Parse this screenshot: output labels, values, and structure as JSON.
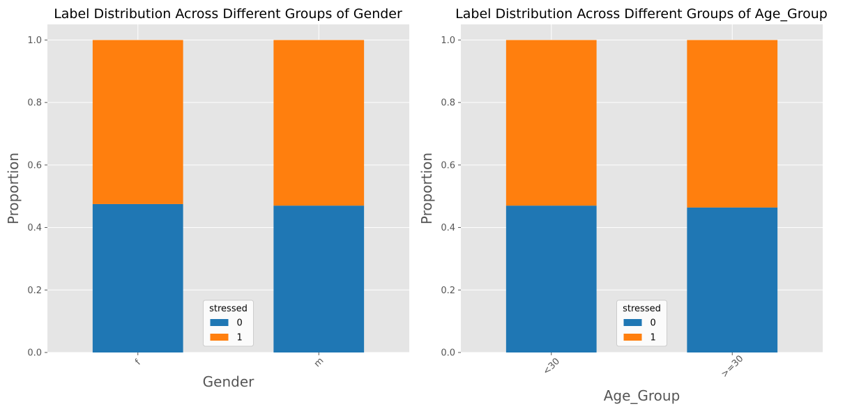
{
  "chart_data": [
    {
      "type": "bar",
      "stacked": true,
      "title": "Label Distribution Across Different Groups of Gender",
      "xlabel": "Gender",
      "ylabel": "Proportion",
      "categories": [
        "f",
        "m"
      ],
      "series": [
        {
          "name": "0",
          "values": [
            0.475,
            0.47
          ],
          "color": "#1f77b4"
        },
        {
          "name": "1",
          "values": [
            0.525,
            0.53
          ],
          "color": "#ff7f0e"
        }
      ],
      "ylim": [
        0,
        1.05
      ],
      "yticks": [
        "0.0",
        "0.2",
        "0.4",
        "0.6",
        "0.8",
        "1.0"
      ],
      "legend": {
        "title": "stressed",
        "placement": "lower-center"
      },
      "grid": true
    },
    {
      "type": "bar",
      "stacked": true,
      "title": "Label Distribution Across Different Groups of Age_Group",
      "xlabel": "Age_Group",
      "ylabel": "Proportion",
      "categories": [
        "<30",
        ">=30"
      ],
      "series": [
        {
          "name": "0",
          "values": [
            0.47,
            0.464
          ],
          "color": "#1f77b4"
        },
        {
          "name": "1",
          "values": [
            0.53,
            0.536
          ],
          "color": "#ff7f0e"
        }
      ],
      "ylim": [
        0,
        1.05
      ],
      "yticks": [
        "0.0",
        "0.2",
        "0.4",
        "0.6",
        "0.8",
        "1.0"
      ],
      "legend": {
        "title": "stressed",
        "placement": "lower-center"
      },
      "grid": true
    }
  ],
  "colors": {
    "background": "#e5e5e5",
    "grid": "#ffffff",
    "text": "#555555"
  }
}
